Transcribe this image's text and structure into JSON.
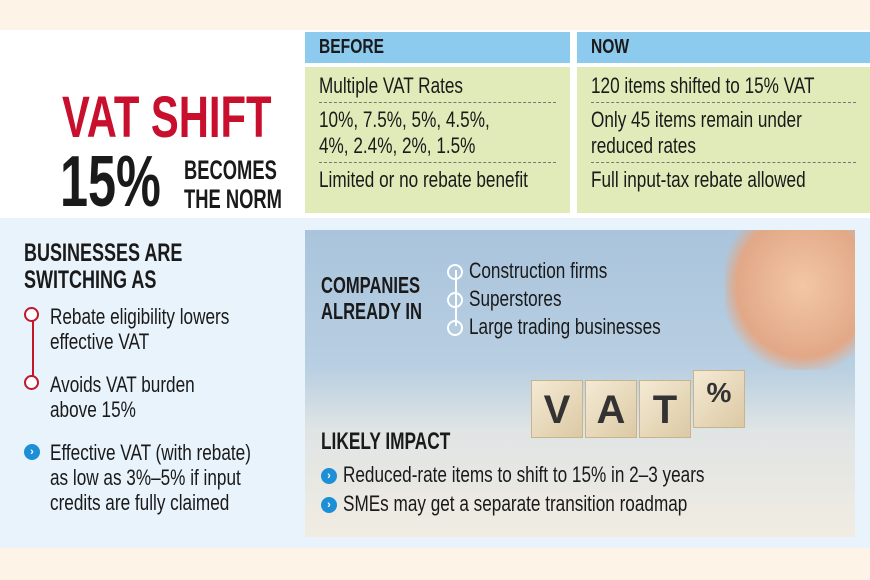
{
  "title": {
    "line1": "VAT SHIFT",
    "big": "15%",
    "sub1": "BECOMES",
    "sub2": "THE NORM"
  },
  "before": {
    "header": "BEFORE",
    "items": [
      "Multiple VAT Rates",
      "10%, 7.5%, 5%, 4.5%,",
      "4%, 2.4%, 2%, 1.5%",
      "Limited or no rebate benefit"
    ]
  },
  "now": {
    "header": "NOW",
    "items": [
      "120 items shifted to 15% VAT",
      "Only 45 items remain under",
      "reduced rates",
      "Full input-tax rebate allowed"
    ]
  },
  "switching": {
    "heading1": "BUSINESSES ARE",
    "heading2": "SWITCHING AS",
    "items": [
      [
        "Rebate eligibility lowers",
        "effective VAT"
      ],
      [
        "Avoids VAT burden",
        "above 15%"
      ],
      [
        "Effective VAT (with rebate)",
        "as low as 3%–5% if input",
        "credits are fully claimed"
      ]
    ]
  },
  "companies": {
    "heading1": "COMPANIES",
    "heading2": "ALREADY IN",
    "items": [
      "Construction firms",
      "Superstores",
      "Large trading businesses"
    ]
  },
  "cubes": [
    "V",
    "A",
    "T",
    "%"
  ],
  "impact": {
    "heading": "LIKELY IMPACT",
    "items": [
      "Reduced-rate items to shift to 15% in 2–3 years",
      "SMEs may get a separate transition roadmap"
    ]
  },
  "colors": {
    "red": "#c8102e",
    "blue_header": "#8ccbee",
    "green_box": "#e1ebb9",
    "bullet_blue": "#1c8fd6"
  }
}
